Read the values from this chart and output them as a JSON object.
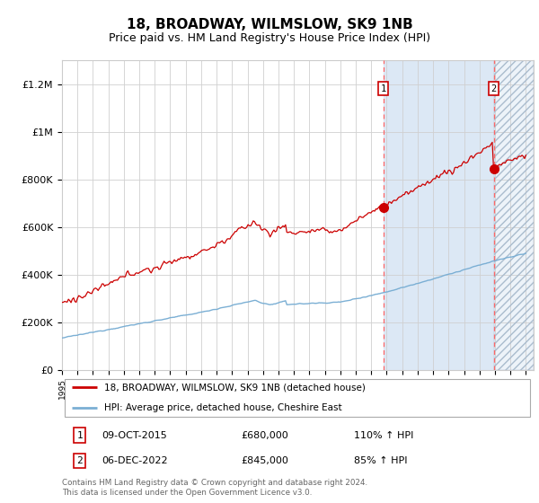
{
  "title": "18, BROADWAY, WILMSLOW, SK9 1NB",
  "subtitle": "Price paid vs. HM Land Registry's House Price Index (HPI)",
  "title_fontsize": 11,
  "subtitle_fontsize": 9,
  "ylabel_ticks": [
    0,
    200000,
    400000,
    600000,
    800000,
    1000000,
    1200000
  ],
  "ylabel_labels": [
    "£0",
    "£200K",
    "£400K",
    "£600K",
    "£800K",
    "£1M",
    "£1.2M"
  ],
  "ylim": [
    0,
    1300000
  ],
  "xlim_start": 1995.0,
  "xlim_end": 2025.5,
  "sale1_x": 2015.77,
  "sale1_y": 680000,
  "sale1_label": "09-OCT-2015",
  "sale1_price": "£680,000",
  "sale1_hpi": "110% ↑ HPI",
  "sale2_x": 2022.92,
  "sale2_y": 845000,
  "sale2_label": "06-DEC-2022",
  "sale2_price": "£845,000",
  "sale2_hpi": "85% ↑ HPI",
  "legend1_label": "18, BROADWAY, WILMSLOW, SK9 1NB (detached house)",
  "legend2_label": "HPI: Average price, detached house, Cheshire East",
  "footer": "Contains HM Land Registry data © Crown copyright and database right 2024.\nThis data is licensed under the Open Government Licence v3.0.",
  "red_color": "#CC0000",
  "blue_color": "#7BAFD4",
  "bg_color": "#DCE8F5",
  "hatch_color": "#C8D8E8"
}
